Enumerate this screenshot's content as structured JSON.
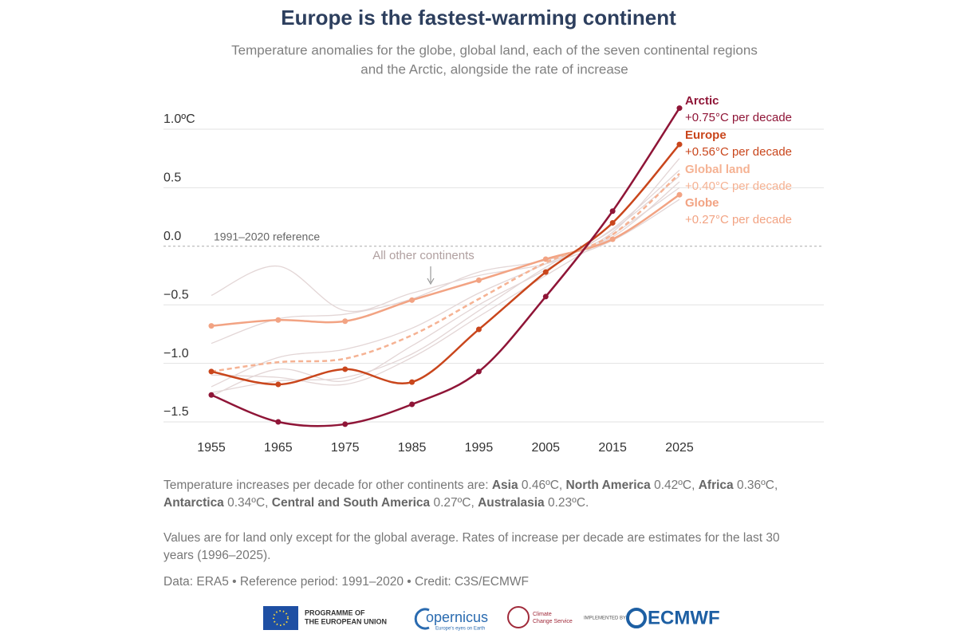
{
  "chart_data": {
    "type": "line",
    "title": "Europe is the fastest-warming continent",
    "subtitle": [
      "Temperature anomalies for the globe, global land, each of the seven continental regions",
      "and the Arctic, alongside the rate of increase"
    ],
    "x": [
      1955,
      1965,
      1975,
      1985,
      1995,
      2005,
      2015,
      2025
    ],
    "xlim": [
      1955,
      2025
    ],
    "xticks": [
      1955,
      1965,
      1975,
      1985,
      1995,
      2005,
      2015,
      2025
    ],
    "ylim": [
      -1.5,
      1.0
    ],
    "yticks": [
      {
        "value": 1.0,
        "label": "1.0ºC"
      },
      0.5,
      {
        "value": 0,
        "label": "0.0"
      },
      {
        "value": -0.5,
        "label": "−0.5"
      },
      {
        "value": -1.0,
        "label": "−1.0"
      },
      {
        "value": -1.5,
        "label": "−1.5"
      }
    ],
    "grid": true,
    "reference": {
      "value": 0,
      "label": "1991–2020 reference"
    },
    "annotation": "All other continents",
    "series": [
      {
        "color": "#e3d6d6",
        "markers": false,
        "values": [
          -0.42,
          -0.17,
          -0.55,
          -0.4,
          -0.25,
          -0.15,
          0.05,
          0.4
        ]
      },
      {
        "color": "#e3d6d6",
        "markers": false,
        "values": [
          -0.83,
          -0.62,
          -0.58,
          -0.45,
          -0.22,
          -0.12,
          0.08,
          0.55
        ]
      },
      {
        "color": "#e3d6d6",
        "markers": false,
        "values": [
          -1.2,
          -0.95,
          -0.88,
          -0.7,
          -0.4,
          -0.15,
          0.12,
          0.75
        ]
      },
      {
        "color": "#e3d6d6",
        "markers": false,
        "values": [
          -1.28,
          -1.05,
          -1.15,
          -0.85,
          -0.5,
          -0.2,
          0.15,
          0.65
        ]
      },
      {
        "color": "#e3d6d6",
        "markers": false,
        "values": [
          -1.1,
          -1.12,
          -1.18,
          -0.95,
          -0.6,
          -0.25,
          0.1,
          0.5
        ]
      },
      {
        "color": "#e3d6d6",
        "markers": false,
        "values": [
          -1.25,
          -1.15,
          -1.12,
          -0.92,
          -0.55,
          -0.18,
          0.14,
          0.6
        ]
      },
      {
        "name": "Globe",
        "rate": "+0.27°C per decade",
        "color": "#f2a383",
        "markers": true,
        "values": [
          -0.68,
          -0.63,
          -0.64,
          -0.46,
          -0.29,
          -0.11,
          0.06,
          0.44
        ]
      },
      {
        "name": "Global land",
        "rate": "+0.40°C per decade",
        "color": "#f5b293",
        "markers": false,
        "dashed": true,
        "values": [
          -1.07,
          -0.99,
          -0.96,
          -0.76,
          -0.45,
          -0.14,
          0.1,
          0.62
        ]
      },
      {
        "name": "Europe",
        "rate": "+0.56°C per decade",
        "color": "#c9461c",
        "markers": true,
        "values": [
          -1.07,
          -1.18,
          -1.05,
          -1.16,
          -0.71,
          -0.22,
          0.2,
          0.87
        ]
      },
      {
        "name": "Arctic",
        "rate": "+0.75°C per decade",
        "color": "#8f1537",
        "markers": true,
        "values": [
          -1.27,
          -1.5,
          -1.52,
          -1.35,
          -1.07,
          -0.43,
          0.3,
          1.18
        ]
      }
    ]
  },
  "footnotes": [
    [
      {
        "text": "Temperature increases per decade for other continents are: "
      },
      {
        "text": "Asia",
        "bold": true
      },
      {
        "text": " 0.46ºC, "
      },
      {
        "text": "North America",
        "bold": true
      },
      {
        "text": " 0.42ºC, "
      },
      {
        "text": "Africa",
        "bold": true
      },
      {
        "text": " 0.36ºC, "
      },
      {
        "text": "Antarctica",
        "bold": true
      },
      {
        "text": " 0.34ºC, "
      },
      {
        "text": "Central and South America",
        "bold": true
      },
      {
        "text": " 0.27ºC, "
      },
      {
        "text": "Australasia",
        "bold": true
      },
      {
        "text": " 0.23ºC."
      }
    ],
    [
      {
        "text": "Values are for land only except for the global average. Rates of increase per decade are estimates for the last 30 years (1996–2025)."
      }
    ],
    [
      {
        "text": "Data: ERA5 • Reference period: 1991–2020 • Credit: C3S/ECMWF"
      }
    ]
  ],
  "logos": {
    "eu": [
      "PROGRAMME OF",
      "THE EUROPEAN UNION"
    ],
    "copernicus": "opernicus",
    "copernicus_tag": "Europe's eyes on Earth",
    "c3s": [
      "Climate",
      "Change Service"
    ],
    "implemented": "IMPLEMENTED BY",
    "ecmwf": "ECMWF"
  }
}
